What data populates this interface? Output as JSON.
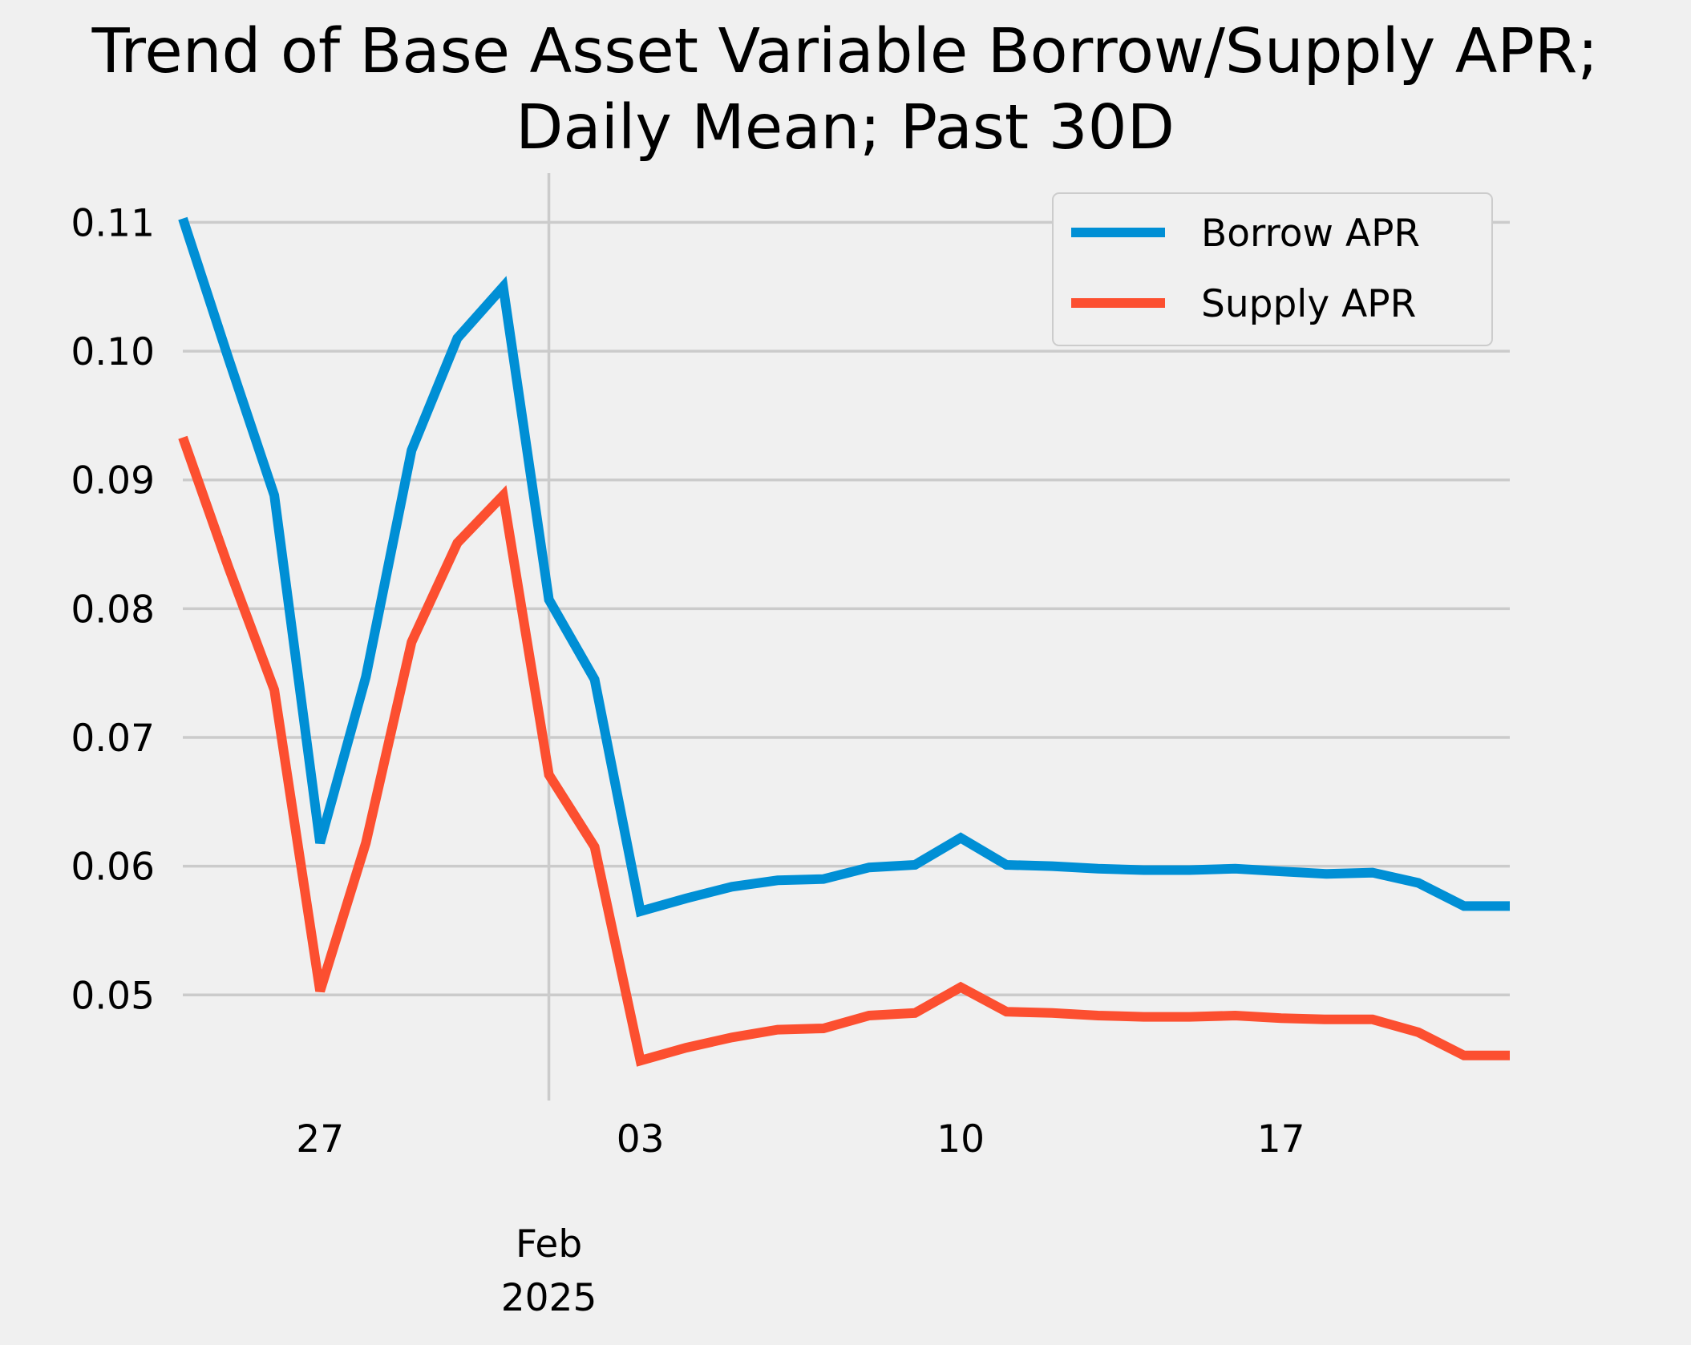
{
  "chart_data": {
    "type": "line",
    "title": [
      "Trend of Base Asset Variable Borrow/Supply APR;",
      "Daily Mean; Past 30D"
    ],
    "xlabel": "",
    "ylabel": "",
    "x": [
      "2025-01-24",
      "2025-01-25",
      "2025-01-26",
      "2025-01-27",
      "2025-01-28",
      "2025-01-29",
      "2025-01-30",
      "2025-01-31",
      "2025-02-01",
      "2025-02-02",
      "2025-02-03",
      "2025-02-04",
      "2025-02-05",
      "2025-02-06",
      "2025-02-07",
      "2025-02-08",
      "2025-02-09",
      "2025-02-10",
      "2025-02-11",
      "2025-02-12",
      "2025-02-13",
      "2025-02-14",
      "2025-02-15",
      "2025-02-16",
      "2025-02-17",
      "2025-02-18",
      "2025-02-19",
      "2025-02-20",
      "2025-02-21",
      "2025-02-22"
    ],
    "series": [
      {
        "name": "Borrow APR",
        "color": "#008fd5",
        "values": [
          0.1103,
          0.0994,
          0.0888,
          0.0618,
          0.0747,
          0.0923,
          0.101,
          0.105,
          0.0807,
          0.0745,
          0.0565,
          0.0575,
          0.0584,
          0.0589,
          0.059,
          0.0599,
          0.0601,
          0.0622,
          0.0601,
          0.06,
          0.0598,
          0.0597,
          0.0597,
          0.0598,
          0.0596,
          0.0594,
          0.0595,
          0.0587,
          0.0569,
          0.0569
        ]
      },
      {
        "name": "Supply APR",
        "color": "#fc4f30",
        "values": [
          0.0933,
          0.0832,
          0.0737,
          0.0503,
          0.0618,
          0.0774,
          0.0851,
          0.0888,
          0.0671,
          0.0615,
          0.0449,
          0.0459,
          0.0467,
          0.0473,
          0.0474,
          0.0484,
          0.0486,
          0.0506,
          0.0487,
          0.0486,
          0.0484,
          0.0483,
          0.0483,
          0.0484,
          0.0482,
          0.0481,
          0.0481,
          0.0471,
          0.0453,
          0.0453
        ]
      }
    ],
    "ylim": [
      0.0418,
      0.1137
    ],
    "yticks": [
      "0.05",
      "0.06",
      "0.07",
      "0.08",
      "0.09",
      "0.10",
      "0.11"
    ],
    "xticks": [
      {
        "date": "2025-01-27",
        "label": "27"
      },
      {
        "date": "2025-02-03",
        "label": "03"
      },
      {
        "date": "2025-02-10",
        "label": "10"
      },
      {
        "date": "2025-02-17",
        "label": "17"
      }
    ],
    "month_marker": {
      "date": "2025-02-01",
      "label": [
        "Feb",
        "2025"
      ]
    },
    "grid": true,
    "legend_position": "top-right",
    "background_color": "#f0f0f0",
    "grid_color": "#cbcbcb"
  }
}
